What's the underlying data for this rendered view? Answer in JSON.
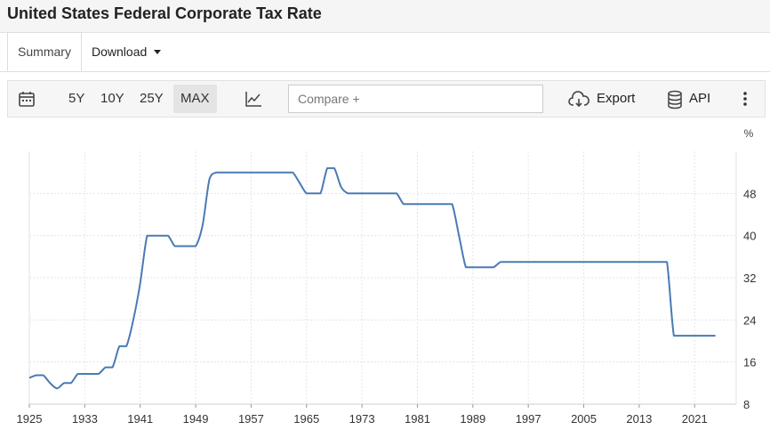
{
  "header": {
    "title": "United States Federal Corporate Tax Rate"
  },
  "tabs": {
    "summary": "Summary",
    "download": "Download"
  },
  "toolbar": {
    "calendar_icon": "calendar-icon",
    "ranges": [
      "5Y",
      "10Y",
      "25Y",
      "MAX"
    ],
    "active_range": "MAX",
    "chart_type_icon": "line-chart-icon",
    "compare_placeholder": "Compare +",
    "export_label": "Export",
    "export_icon": "cloud-download-icon",
    "api_label": "API",
    "api_icon": "database-icon",
    "more_icon": "vertical-ellipsis-icon"
  },
  "chart_data": {
    "type": "line",
    "title": "",
    "xlabel": "",
    "ylabel": "%",
    "x_ticks": [
      "1925",
      "1933",
      "1941",
      "1949",
      "1957",
      "1965",
      "1973",
      "1981",
      "1989",
      "1997",
      "2005",
      "2013",
      "2021"
    ],
    "y_ticks": [
      8,
      16,
      24,
      32,
      40,
      48
    ],
    "xlim": [
      1925,
      2027
    ],
    "ylim": [
      8,
      56
    ],
    "grid": true,
    "line_color": "#4a7ab5",
    "series": [
      {
        "name": "",
        "x": [
          1925,
          1926,
          1927,
          1928,
          1929,
          1930,
          1931,
          1932,
          1933,
          1934,
          1935,
          1936,
          1937,
          1938,
          1939,
          1940,
          1941,
          1942,
          1943,
          1944,
          1945,
          1946,
          1947,
          1948,
          1949,
          1950,
          1951,
          1952,
          1953,
          1954,
          1955,
          1956,
          1957,
          1958,
          1959,
          1960,
          1961,
          1962,
          1963,
          1964,
          1965,
          1966,
          1967,
          1968,
          1969,
          1970,
          1971,
          1972,
          1973,
          1974,
          1975,
          1976,
          1977,
          1978,
          1979,
          1980,
          1981,
          1982,
          1983,
          1984,
          1985,
          1986,
          1987,
          1988,
          1989,
          1990,
          1991,
          1992,
          1993,
          1994,
          1995,
          1996,
          1997,
          1998,
          1999,
          2000,
          2001,
          2002,
          2003,
          2004,
          2005,
          2006,
          2007,
          2008,
          2009,
          2010,
          2011,
          2012,
          2013,
          2014,
          2015,
          2016,
          2017,
          2018,
          2019,
          2020,
          2021,
          2022,
          2023,
          2024
        ],
        "values": [
          13,
          13.5,
          13.5,
          12,
          11,
          12,
          12,
          13.75,
          13.75,
          13.75,
          13.75,
          15,
          15,
          19,
          19,
          24,
          31,
          40,
          40,
          40,
          40,
          38,
          38,
          38,
          38,
          42,
          50.75,
          52,
          52,
          52,
          52,
          52,
          52,
          52,
          52,
          52,
          52,
          52,
          52,
          50,
          48,
          48,
          48,
          52.8,
          52.8,
          49.2,
          48,
          48,
          48,
          48,
          48,
          48,
          48,
          48,
          46,
          46,
          46,
          46,
          46,
          46,
          46,
          46,
          40,
          34,
          34,
          34,
          34,
          34,
          35,
          35,
          35,
          35,
          35,
          35,
          35,
          35,
          35,
          35,
          35,
          35,
          35,
          35,
          35,
          35,
          35,
          35,
          35,
          35,
          35,
          35,
          35,
          35,
          35,
          21,
          21,
          21,
          21,
          21,
          21,
          21
        ]
      }
    ]
  }
}
